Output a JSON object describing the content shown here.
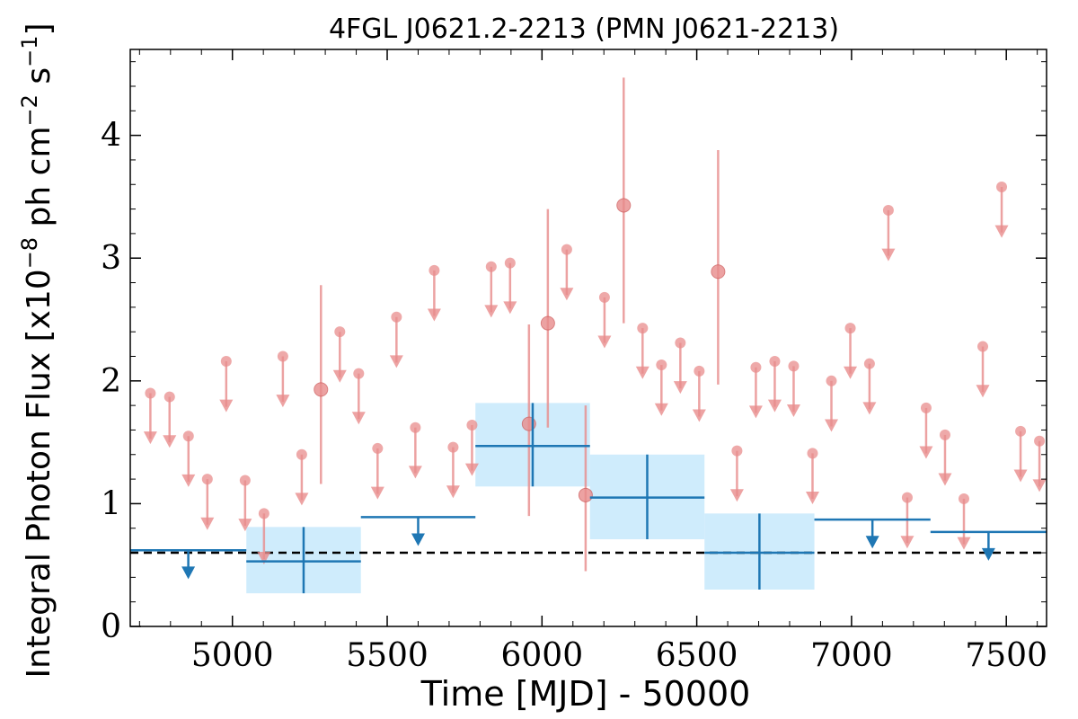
{
  "chart_data": {
    "type": "scatter",
    "title": "4FGL J0621.2-2213 (PMN J0621-2213)",
    "xlabel": "Time [MJD] - 50000",
    "ylabel_main": "Integral Photon Flux [x10",
    "ylabel_exp1": "−8",
    "ylabel_mid": " ph cm",
    "ylabel_exp2": "−2",
    "ylabel_mid2": " s",
    "ylabel_exp3": "−1",
    "ylabel_end": "]",
    "xlim": [
      4670,
      7630
    ],
    "ylim": [
      0,
      4.7
    ],
    "xticks": [
      5000,
      5500,
      6000,
      6500,
      7000,
      7500
    ],
    "yticks": [
      0,
      1,
      2,
      3,
      4
    ],
    "x_tick_labels": [
      "5000",
      "5500",
      "6000",
      "6500",
      "7000",
      "7500"
    ],
    "y_tick_labels": [
      "0",
      "1",
      "2",
      "3",
      "4"
    ],
    "grid": false,
    "dashed_line_level": 0.6,
    "colors": {
      "short_bins": "#e88c8c",
      "long_bins": "#1f77b4",
      "long_band": "#bfe6fb",
      "dashed": "#000000"
    },
    "series": [
      {
        "points_upper_limits": [
          [
            4735,
            1.9
          ],
          [
            4797,
            1.87
          ],
          [
            4858,
            1.55
          ],
          [
            4919,
            1.2
          ],
          [
            4980,
            2.16
          ],
          [
            5041,
            1.19
          ],
          [
            5102,
            0.92
          ],
          [
            5163,
            2.2
          ],
          [
            5224,
            1.4
          ],
          [
            5347,
            2.4
          ],
          [
            5408,
            2.06
          ],
          [
            5469,
            1.45
          ],
          [
            5530,
            2.52
          ],
          [
            5591,
            1.62
          ],
          [
            5652,
            2.9
          ],
          [
            5713,
            1.46
          ],
          [
            5774,
            1.64
          ],
          [
            5836,
            2.93
          ],
          [
            5897,
            2.96
          ],
          [
            6080,
            3.07
          ],
          [
            6202,
            2.68
          ],
          [
            6325,
            2.43
          ],
          [
            6386,
            2.13
          ],
          [
            6447,
            2.31
          ],
          [
            6508,
            2.08
          ],
          [
            6630,
            1.43
          ],
          [
            6691,
            2.11
          ],
          [
            6752,
            2.16
          ],
          [
            6813,
            2.12
          ],
          [
            6874,
            1.41
          ],
          [
            6935,
            2.0
          ],
          [
            6996,
            2.43
          ],
          [
            7058,
            2.14
          ],
          [
            7119,
            3.39
          ],
          [
            7180,
            1.05
          ],
          [
            7241,
            1.78
          ],
          [
            7302,
            1.56
          ],
          [
            7363,
            1.04
          ],
          [
            7424,
            2.28
          ],
          [
            7485,
            3.58
          ],
          [
            7546,
            1.59
          ],
          [
            7607,
            1.51
          ]
        ],
        "points_detections": [
          {
            "x": 5286,
            "y": 1.93,
            "ylo": 1.16,
            "yhi": 2.78
          },
          {
            "x": 5958,
            "y": 1.65,
            "ylo": 0.9,
            "yhi": 2.46
          },
          {
            "x": 6019,
            "y": 2.47,
            "ylo": 1.62,
            "yhi": 3.4
          },
          {
            "x": 6141,
            "y": 1.07,
            "ylo": 0.45,
            "yhi": 1.8
          },
          {
            "x": 6264,
            "y": 3.43,
            "ylo": 2.47,
            "yhi": 4.47
          },
          {
            "x": 6569,
            "y": 2.89,
            "ylo": 1.97,
            "yhi": 3.88
          }
        ]
      },
      {
        "upper_limits": [
          {
            "x0": 4670,
            "x1": 5045,
            "y": 0.62
          },
          {
            "x0": 5415,
            "x1": 5785,
            "y": 0.89
          },
          {
            "x0": 6880,
            "x1": 7255,
            "y": 0.87
          },
          {
            "x0": 7255,
            "x1": 7630,
            "y": 0.77
          }
        ],
        "detections": [
          {
            "x0": 5045,
            "x1": 5415,
            "y": 0.53,
            "ylo": 0.27,
            "yhi": 0.81
          },
          {
            "x0": 5785,
            "x1": 6155,
            "y": 1.47,
            "ylo": 1.14,
            "yhi": 1.82
          },
          {
            "x0": 6155,
            "x1": 6525,
            "y": 1.05,
            "ylo": 0.71,
            "yhi": 1.4
          },
          {
            "x0": 6525,
            "x1": 6880,
            "y": 0.6,
            "ylo": 0.3,
            "yhi": 0.92
          }
        ]
      }
    ]
  }
}
